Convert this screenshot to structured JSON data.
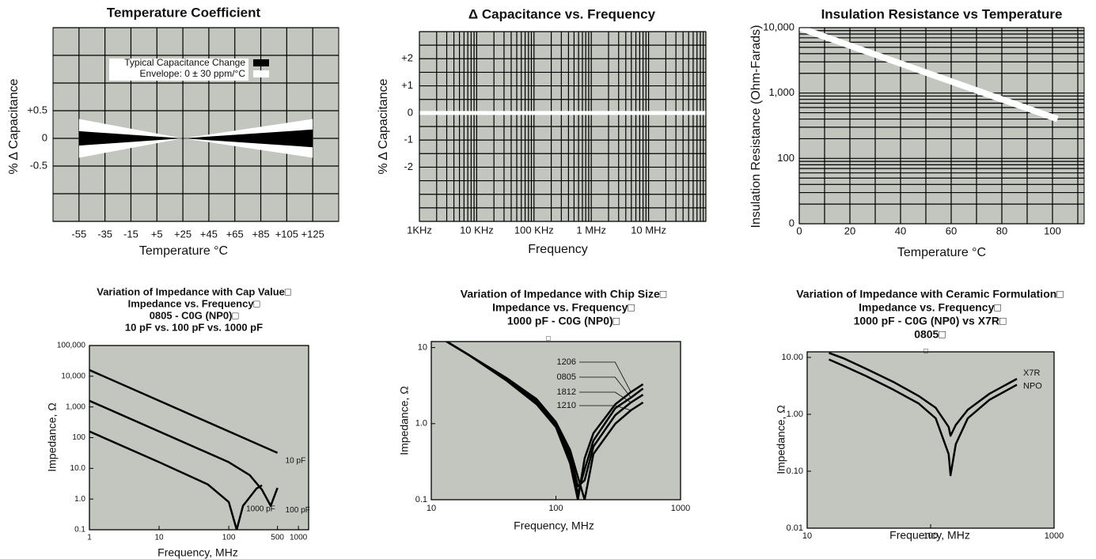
{
  "chart_data": [
    {
      "type": "band",
      "title": "Temperature Coefficient",
      "xlabel": "Temperature °C",
      "ylabel": "% Δ Capacitance",
      "x": [
        -55,
        25,
        125
      ],
      "series": [
        {
          "name": "Envelope: 0 ± 30 ppm/°C",
          "color": "#ffffff",
          "upper": [
            0.35,
            0,
            0.35
          ],
          "lower": [
            -0.35,
            0,
            -0.35
          ]
        },
        {
          "name": "Typical Capacitance Change",
          "color": "#000000",
          "upper": [
            0.13,
            0,
            0.16
          ],
          "lower": [
            -0.13,
            0,
            -0.16
          ]
        }
      ],
      "xlim": [
        -75,
        145
      ],
      "ylim": [
        -1.5,
        2
      ],
      "xticks": [
        -55,
        -35,
        -15,
        {
          "value": 5,
          "label": "+5"
        },
        {
          "value": 25,
          "label": "+25"
        },
        {
          "value": 45,
          "label": "+45"
        },
        {
          "value": 65,
          "label": "+65"
        },
        {
          "value": 85,
          "label": "+85"
        },
        {
          "value": 105,
          "label": "+105"
        },
        {
          "value": 125,
          "label": "+125"
        }
      ],
      "yticks": [
        {
          "value": 0.5,
          "label": "+0.5"
        },
        0,
        -0.5
      ],
      "ygrid": [
        -1.5,
        -1,
        -0.5,
        0,
        0.5,
        1,
        1.5,
        2
      ],
      "grid": true,
      "legend": "upper center",
      "background": "#c2c6bf"
    },
    {
      "type": "line",
      "title": "Δ Capacitance vs. Frequency",
      "xlabel": "Frequency",
      "ylabel": "% Δ Capacitance",
      "xscale": "log",
      "x": [
        1000,
        100000000
      ],
      "series": [
        {
          "color": "#ffffff",
          "values": [
            0,
            0
          ]
        }
      ],
      "xlim": [
        1000,
        100000000
      ],
      "ylim": [
        -4,
        3
      ],
      "xticks": [
        {
          "value": 1000,
          "label": "1KHz"
        },
        {
          "value": 10000,
          "label": "10 KHz"
        },
        {
          "value": 100000,
          "label": "100 KHz"
        },
        {
          "value": 1000000,
          "label": "1 MHz"
        },
        {
          "value": 10000000,
          "label": "10 MHz"
        }
      ],
      "yticks": [
        {
          "value": 2,
          "label": "+2"
        },
        {
          "value": 1,
          "label": "+1"
        },
        0,
        -1,
        -2
      ],
      "xgrid": [
        1000,
        2000,
        3000,
        4000,
        5000,
        6000,
        7000,
        8000,
        9000,
        10000,
        20000,
        30000,
        40000,
        50000,
        60000,
        70000,
        80000,
        90000,
        100000,
        200000,
        300000,
        400000,
        500000,
        600000,
        700000,
        800000,
        900000,
        1000000,
        2000000,
        3000000,
        4000000,
        5000000,
        6000000,
        7000000,
        8000000,
        9000000,
        10000000,
        20000000,
        30000000,
        40000000,
        50000000,
        60000000,
        70000000,
        80000000,
        90000000,
        100000000
      ],
      "ygrid": [
        -4,
        -3.5,
        -3,
        -2.5,
        -2,
        -1.5,
        -1,
        -0.5,
        0,
        0.5,
        1,
        1.5,
        2,
        2.5,
        3
      ],
      "grid": true,
      "background": "#c2c6bf"
    },
    {
      "type": "line",
      "title": "Insulation Resistance vs Temperature",
      "xlabel": "Temperature °C",
      "ylabel": "Insulation Resistance (Ohm-Farads)",
      "yscale": "log",
      "x": [
        0,
        102
      ],
      "series": [
        {
          "color": "#ffffff",
          "values": [
            10000,
            400
          ]
        }
      ],
      "xlim": [
        0,
        112.5
      ],
      "ylim": [
        10,
        10000
      ],
      "xticks": [
        0,
        20,
        40,
        60,
        80,
        100
      ],
      "yticks": [
        {
          "value": 10000,
          "label": "10,000"
        },
        {
          "value": 1000,
          "label": "1,000"
        },
        100,
        {
          "value": 10,
          "label": "0"
        }
      ],
      "xgrid": [
        0,
        10,
        20,
        30,
        40,
        50,
        60,
        70,
        80,
        90,
        100,
        110
      ],
      "ygrid": [
        10,
        20,
        30,
        40,
        50,
        60,
        70,
        80,
        90,
        100,
        200,
        300,
        400,
        500,
        600,
        700,
        800,
        900,
        1000,
        2000,
        3000,
        4000,
        5000,
        6000,
        7000,
        8000,
        9000,
        10000
      ],
      "grid": true,
      "background": "#c2c6bf"
    },
    {
      "type": "line",
      "title": [
        "Variation of Impedance with Cap Value□",
        "Impedance vs. Frequency□",
        "0805 - C0G (NP0)□",
        "10 pF vs. 100 pF vs. 1000 pF"
      ],
      "xlabel": "Frequency, MHz",
      "ylabel": "Impedance, Ω",
      "xscale": "log",
      "yscale": "log",
      "series": [
        {
          "name": "10 pF",
          "color": "#000000",
          "x": [
            1,
            500
          ],
          "values": [
            15900,
            32
          ]
        },
        {
          "name": "100 pF",
          "color": "#000000",
          "x": [
            1,
            100,
            200,
            300,
            400,
            500
          ],
          "values": [
            1590,
            15.9,
            6,
            2,
            0.6,
            2.3
          ]
        },
        {
          "name": "1000 pF",
          "color": "#000000",
          "x": [
            1,
            10,
            50,
            100,
            130,
            160,
            250,
            300
          ],
          "values": [
            159,
            15.9,
            3,
            0.8,
            0.1,
            0.6,
            2.2,
            2.8
          ]
        }
      ],
      "xlim": [
        1,
        1400
      ],
      "ylim": [
        0.1,
        100000
      ],
      "xticks": [
        1,
        10,
        100,
        500,
        1000
      ],
      "yticks": [
        0.1,
        {
          "value": 1,
          "label": "1.0"
        },
        {
          "value": 10,
          "label": "10.0"
        },
        100,
        {
          "value": 1000,
          "label": "1,000"
        },
        {
          "value": 10000,
          "label": "10,000"
        },
        {
          "value": 100000,
          "label": "100,000"
        }
      ],
      "grid": false,
      "background": "#c2c6bf"
    },
    {
      "type": "line",
      "title": [
        "Variation of Impedance with Chip Size□",
        "Impedance vs. Frequency□",
        "1000 pF - C0G (NP0)□"
      ],
      "annotations": [
        "□"
      ],
      "xlabel": "Frequency, MHz",
      "ylabel": "Impedance, Ω",
      "xscale": "log",
      "yscale": "log",
      "x": [
        11,
        20,
        40,
        70,
        100,
        130,
        150,
        170,
        200,
        300,
        400,
        500
      ],
      "series": [
        {
          "name": "1206",
          "color": "#000000",
          "values": [
            14.5,
            8,
            3.7,
            1.8,
            0.9,
            0.3,
            0.1,
            0.35,
            0.75,
            1.8,
            2.6,
            3.3
          ]
        },
        {
          "name": "0805",
          "color": "#000000",
          "values": [
            14.5,
            8,
            3.8,
            1.9,
            0.95,
            0.35,
            0.12,
            0.25,
            0.6,
            1.6,
            2.2,
            2.9
          ]
        },
        {
          "name": "1812",
          "color": "#000000",
          "values": [
            14.5,
            8,
            3.9,
            2,
            1,
            0.4,
            0.15,
            0.18,
            0.5,
            1.3,
            1.9,
            2.4
          ]
        },
        {
          "name": "1210",
          "color": "#000000",
          "values": [
            14.5,
            8,
            4,
            2.1,
            1.05,
            0.45,
            0.2,
            0.1,
            0.4,
            1,
            1.5,
            1.9
          ]
        }
      ],
      "xlim": [
        10,
        1000
      ],
      "ylim": [
        0.1,
        12
      ],
      "xticks": [
        10,
        100,
        1000
      ],
      "yticks": [
        0.1,
        {
          "value": 1,
          "label": "1.0"
        },
        10
      ],
      "grid": false,
      "background": "#c2c6bf"
    },
    {
      "type": "line",
      "title": [
        "Variation of Impedance with Ceramic Formulation□",
        "Impedance vs. Frequency□",
        "1000 pF - C0G (NP0) vs X7R□",
        "0805□"
      ],
      "annotations": [
        "□"
      ],
      "xlabel": "Frequency, MHz",
      "ylabel": "Impedance, Ω",
      "xscale": "log",
      "yscale": "log",
      "x": [
        15,
        20,
        30,
        50,
        80,
        110,
        140,
        145,
        160,
        200,
        300,
        500
      ],
      "series": [
        {
          "name": "X7R",
          "color": "#000000",
          "values": [
            12,
            9.5,
            6.3,
            3.7,
            2.1,
            1.3,
            0.6,
            0.42,
            0.65,
            1.2,
            2.3,
            4.2
          ]
        },
        {
          "name": "NPO",
          "color": "#000000",
          "values": [
            9.2,
            7,
            4.7,
            2.7,
            1.55,
            0.85,
            0.2,
            0.085,
            0.3,
            0.85,
            1.8,
            3.3
          ]
        }
      ],
      "xlim": [
        10,
        1000
      ],
      "ylim": [
        0.01,
        12.5
      ],
      "xticks": [
        10,
        100,
        1000
      ],
      "yticks": [
        {
          "value": 0.01,
          "label": "0.01"
        },
        {
          "value": 0.1,
          "label": "0.10"
        },
        {
          "value": 1,
          "label": "1.00"
        },
        {
          "value": 10,
          "label": "10.00"
        }
      ],
      "grid": false,
      "background": "#c2c6bf"
    }
  ]
}
